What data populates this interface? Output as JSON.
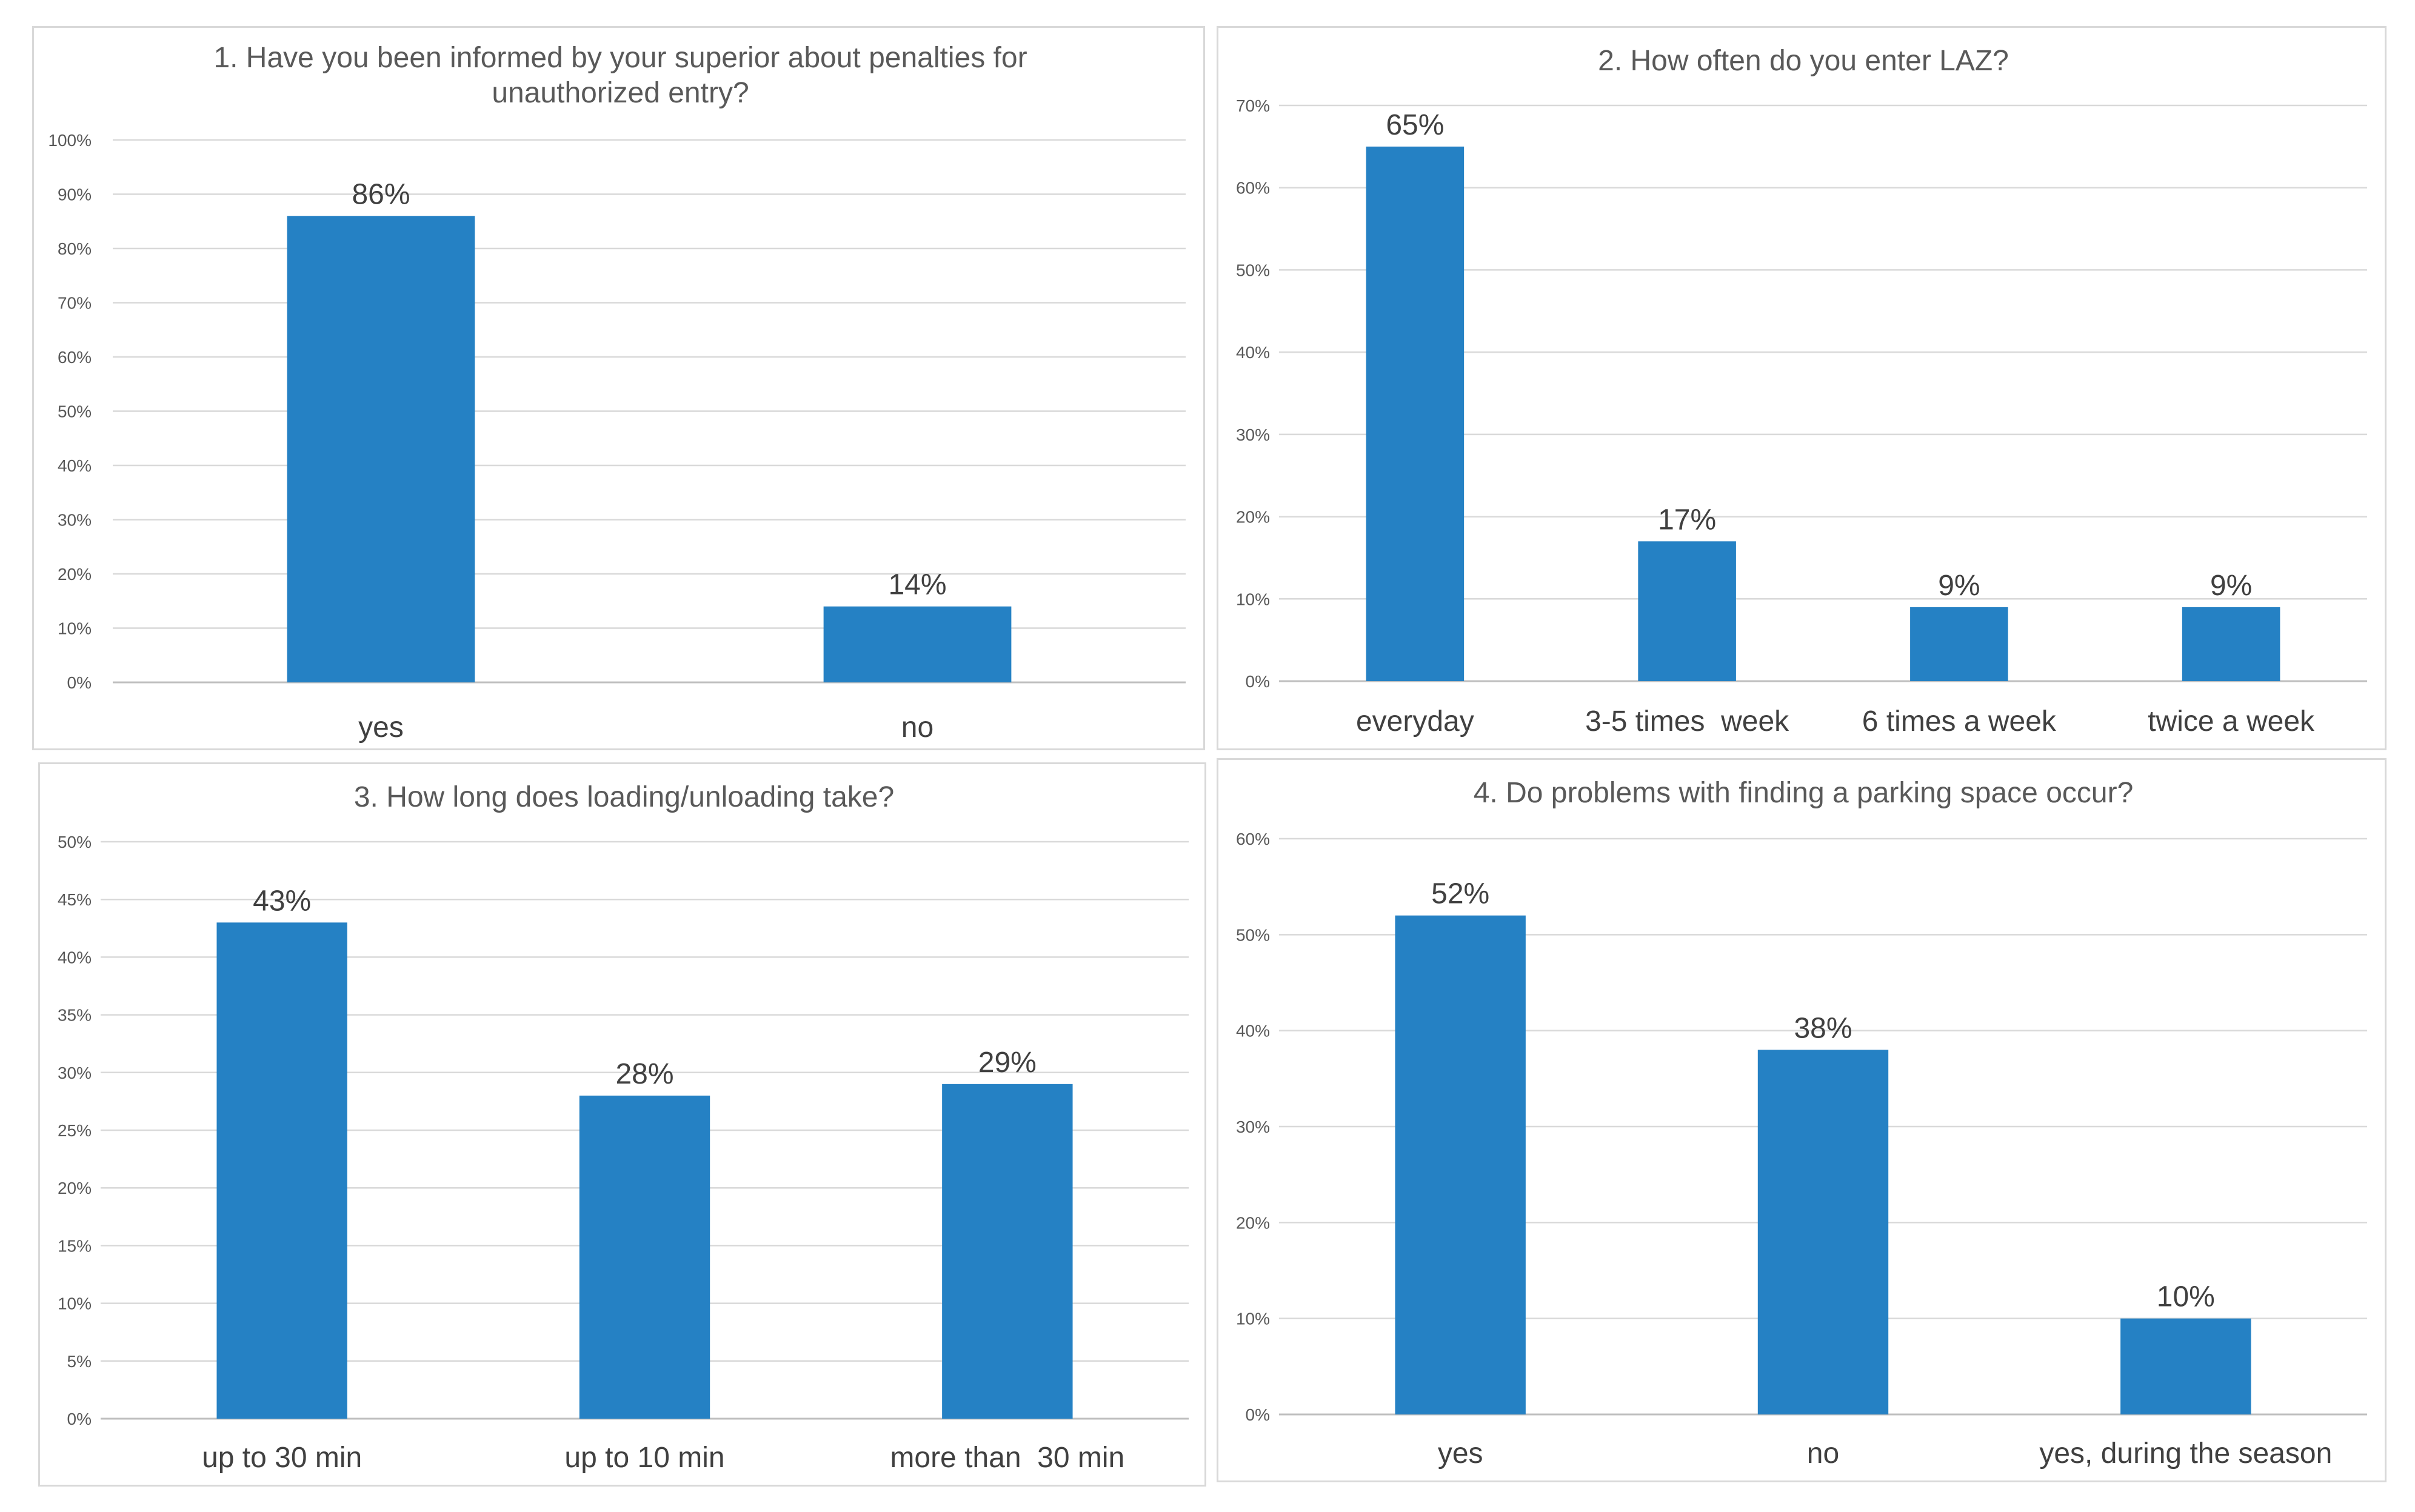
{
  "colors": {
    "bar": "#2581C4",
    "grid": "#d9d9d9",
    "text": "#404040",
    "tick": "#595959"
  },
  "chart_data": [
    {
      "type": "bar",
      "title_lines": [
        "1. Have you been informed by your superior about penalties for",
        "unauthorized entry?"
      ],
      "categories": [
        "yes",
        "no"
      ],
      "values": [
        86,
        14
      ],
      "data_labels": [
        "86%",
        "14%"
      ],
      "ylim": [
        0,
        100
      ],
      "ystep": 10,
      "tick_suffix": "%",
      "xlabel": "",
      "ylabel": ""
    },
    {
      "type": "bar",
      "title_lines": [
        "2. How often do you enter LAZ?"
      ],
      "categories": [
        "everyday",
        "3-5 times  week",
        "6 times a week",
        "twice a week"
      ],
      "values": [
        65,
        17,
        9,
        9
      ],
      "data_labels": [
        "65%",
        "17%",
        "9%",
        "9%"
      ],
      "ylim": [
        0,
        70
      ],
      "ystep": 10,
      "tick_suffix": "%",
      "xlabel": "",
      "ylabel": ""
    },
    {
      "type": "bar",
      "title_lines": [
        "3. How long does loading/unloading take?"
      ],
      "categories": [
        "up to 30 min",
        "up to 10 min",
        "more than  30 min"
      ],
      "values": [
        43,
        28,
        29
      ],
      "data_labels": [
        "43%",
        "28%",
        "29%"
      ],
      "ylim": [
        0,
        50
      ],
      "ystep": 5,
      "tick_suffix": "%",
      "xlabel": "",
      "ylabel": ""
    },
    {
      "type": "bar",
      "title_lines": [
        "4. Do problems with finding a parking space occur?"
      ],
      "categories": [
        "yes",
        "no",
        "yes, during the season"
      ],
      "values": [
        52,
        38,
        10
      ],
      "data_labels": [
        "52%",
        "38%",
        "10%"
      ],
      "ylim": [
        0,
        60
      ],
      "ystep": 10,
      "tick_suffix": "%",
      "xlabel": "",
      "ylabel": ""
    }
  ]
}
